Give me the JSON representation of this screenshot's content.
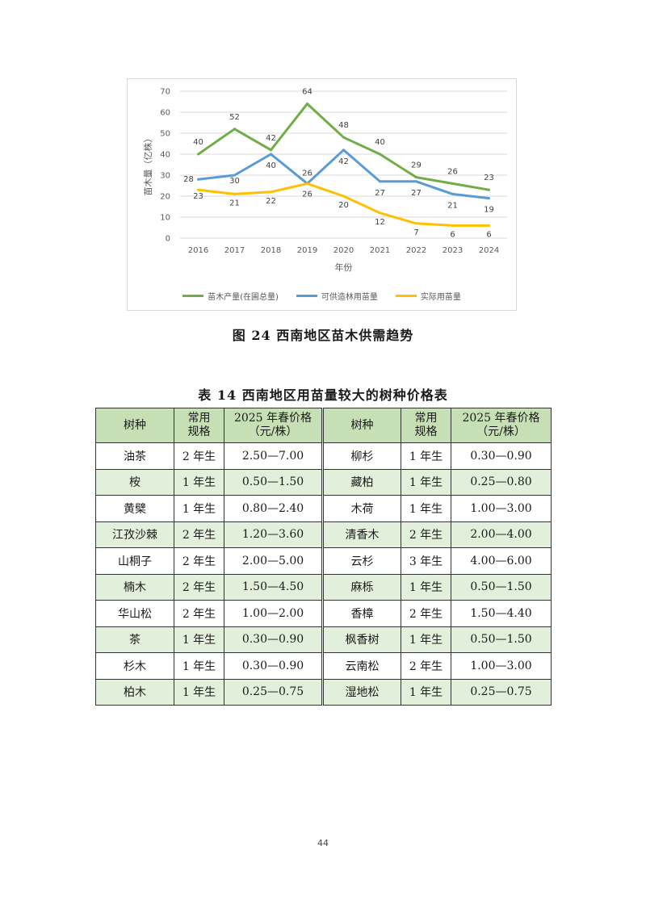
{
  "chart": {
    "caption": "图 24  西南地区苗木供需趋势",
    "chart_data": {
      "type": "line",
      "x": [
        "2016",
        "2017",
        "2018",
        "2019",
        "2020",
        "2021",
        "2022",
        "2023",
        "2024"
      ],
      "xlabel": "年份",
      "ylabel": "苗木量（亿株）",
      "ylim": [
        0,
        70
      ],
      "yticks": [
        0,
        10,
        20,
        30,
        40,
        50,
        60,
        70
      ],
      "grid": true,
      "legend_position": "bottom",
      "series": [
        {
          "name": "苗木产量(在圃总量)",
          "color": "#70ad47",
          "values": [
            40,
            52,
            42,
            64,
            48,
            40,
            29,
            26,
            23
          ]
        },
        {
          "name": "可供造林用苗量",
          "color": "#5b9bd5",
          "values": [
            28,
            30,
            40,
            26,
            42,
            27,
            27,
            21,
            19
          ]
        },
        {
          "name": "实际用苗量",
          "color": "#ffc000",
          "values": [
            23,
            21,
            22,
            26,
            20,
            12,
            7,
            6,
            6
          ]
        }
      ]
    }
  },
  "table": {
    "title": "表 14  西南地区用苗量较大的树种价格表",
    "headers": [
      {
        "l1": "树种",
        "l2": ""
      },
      {
        "l1": "常用",
        "l2": "规格"
      },
      {
        "l1": "2025 年春价格",
        "l2": "（元/株）"
      },
      {
        "l1": "树种",
        "l2": ""
      },
      {
        "l1": "常用",
        "l2": "规格"
      },
      {
        "l1": "2025 年春价格",
        "l2": "（元/株）"
      }
    ],
    "rows": [
      [
        "油茶",
        "2 年生",
        "2.50—7.00",
        "柳杉",
        "1 年生",
        "0.30—0.90"
      ],
      [
        "桉",
        "1 年生",
        "0.50—1.50",
        "藏柏",
        "1 年生",
        "0.25—0.80"
      ],
      [
        "黄檗",
        "1 年生",
        "0.80—2.40",
        "木荷",
        "1 年生",
        "1.00—3.00"
      ],
      [
        "江孜沙棘",
        "2 年生",
        "1.20—3.60",
        "清香木",
        "2 年生",
        "2.00—4.00"
      ],
      [
        "山桐子",
        "2 年生",
        "2.00—5.00",
        "云杉",
        "3 年生",
        "4.00—6.00"
      ],
      [
        "楠木",
        "2 年生",
        "1.50—4.50",
        "麻栎",
        "1 年生",
        "0.50—1.50"
      ],
      [
        "华山松",
        "2 年生",
        "1.00—2.00",
        "香樟",
        "2 年生",
        "1.50—4.40"
      ],
      [
        "茶",
        "1 年生",
        "0.30—0.90",
        "枫香树",
        "1 年生",
        "0.50—1.50"
      ],
      [
        "杉木",
        "1 年生",
        "0.30—0.90",
        "云南松",
        "2 年生",
        "1.00—3.00"
      ],
      [
        "柏木",
        "1 年生",
        "0.25—0.75",
        "湿地松",
        "1 年生",
        "0.25—0.75"
      ]
    ]
  },
  "page_number": "44"
}
